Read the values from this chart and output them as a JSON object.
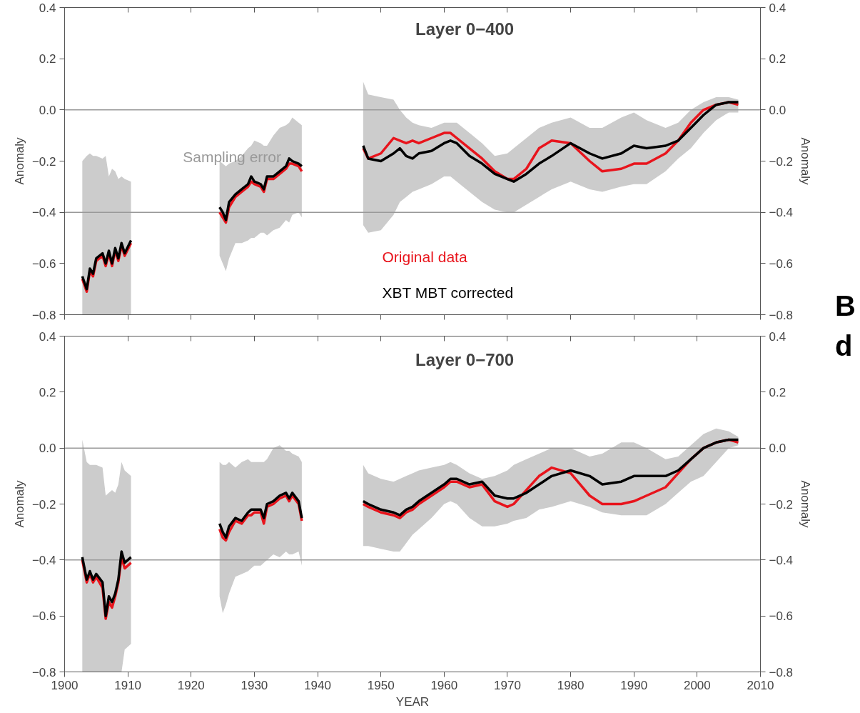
{
  "chart_data": [
    {
      "type": "line",
      "title": "Layer 0−400",
      "ylabel": "Anomaly",
      "y2label": "Anomaly",
      "x": [
        1902.8,
        1903.5,
        1904,
        1904.5,
        1905,
        1906,
        1906.5,
        1907,
        1907.5,
        1908,
        1908.5,
        1909,
        1909.5,
        1910.5,
        1917,
        1924.5,
        1925,
        1925.5,
        1926,
        1927,
        1928,
        1929,
        1929.5,
        1930,
        1931,
        1931.5,
        1932,
        1933,
        1934,
        1935,
        1935.5,
        1936,
        1937,
        1937.5,
        1942,
        1947.2,
        1948,
        1950,
        1952,
        1953,
        1954,
        1955,
        1956,
        1958,
        1960,
        1961,
        1962,
        1964,
        1966,
        1968,
        1970,
        1971,
        1973,
        1975,
        1977,
        1980,
        1983,
        1985,
        1988,
        1990,
        1992,
        1995,
        1997,
        1999,
        2001,
        2003,
        2005,
        2006.5
      ],
      "series": [
        {
          "name": "Original data",
          "color": "#e8141c",
          "values": [
            -0.66,
            -0.71,
            -0.63,
            -0.65,
            -0.59,
            -0.57,
            -0.61,
            -0.56,
            -0.61,
            -0.55,
            -0.59,
            -0.53,
            -0.57,
            -0.52,
            null,
            -0.4,
            -0.42,
            -0.44,
            -0.38,
            -0.34,
            -0.32,
            -0.3,
            -0.28,
            -0.29,
            -0.3,
            -0.32,
            -0.27,
            -0.27,
            -0.25,
            -0.23,
            -0.21,
            -0.21,
            -0.22,
            -0.24,
            null,
            -0.15,
            -0.19,
            -0.17,
            -0.11,
            -0.12,
            -0.13,
            -0.12,
            -0.13,
            -0.11,
            -0.09,
            -0.09,
            -0.11,
            -0.15,
            -0.19,
            -0.24,
            -0.27,
            -0.27,
            -0.23,
            -0.15,
            -0.12,
            -0.13,
            -0.2,
            -0.24,
            -0.23,
            -0.21,
            -0.21,
            -0.17,
            -0.12,
            -0.05,
            0.0,
            0.02,
            0.03,
            0.02
          ]
        },
        {
          "name": "XBT MBT corrected",
          "color": "#000000",
          "values": [
            -0.65,
            -0.7,
            -0.62,
            -0.64,
            -0.58,
            -0.56,
            -0.6,
            -0.55,
            -0.6,
            -0.54,
            -0.58,
            -0.52,
            -0.56,
            -0.51,
            null,
            -0.38,
            -0.4,
            -0.43,
            -0.36,
            -0.33,
            -0.31,
            -0.29,
            -0.26,
            -0.28,
            -0.29,
            -0.31,
            -0.26,
            -0.26,
            -0.24,
            -0.22,
            -0.19,
            -0.2,
            -0.21,
            -0.22,
            null,
            -0.14,
            -0.19,
            -0.2,
            -0.17,
            -0.15,
            -0.18,
            -0.19,
            -0.17,
            -0.16,
            -0.13,
            -0.12,
            -0.13,
            -0.18,
            -0.21,
            -0.25,
            -0.27,
            -0.28,
            -0.25,
            -0.21,
            -0.18,
            -0.13,
            -0.17,
            -0.19,
            -0.17,
            -0.14,
            -0.15,
            -0.14,
            -0.12,
            -0.07,
            -0.02,
            0.02,
            0.03,
            0.03
          ],
          "upper": [
            -0.2,
            -0.18,
            -0.17,
            -0.18,
            -0.18,
            -0.19,
            -0.18,
            -0.26,
            -0.23,
            -0.24,
            -0.27,
            -0.26,
            -0.27,
            -0.28,
            null,
            -0.2,
            -0.21,
            -0.22,
            -0.21,
            -0.2,
            -0.18,
            -0.15,
            -0.14,
            -0.12,
            -0.13,
            -0.14,
            -0.14,
            -0.1,
            -0.07,
            -0.06,
            -0.05,
            -0.03,
            -0.05,
            -0.06,
            null,
            0.11,
            0.06,
            0.05,
            0.04,
            0.0,
            -0.03,
            -0.05,
            -0.06,
            -0.07,
            -0.05,
            -0.05,
            -0.05,
            -0.09,
            -0.13,
            -0.18,
            -0.17,
            -0.15,
            -0.11,
            -0.07,
            -0.05,
            -0.03,
            -0.07,
            -0.07,
            -0.03,
            -0.01,
            -0.04,
            -0.07,
            -0.05,
            0.0,
            0.03,
            0.05,
            0.05,
            0.04
          ],
          "lower": [
            -0.8,
            -0.8,
            -0.8,
            -0.8,
            -0.8,
            -0.8,
            -0.8,
            -0.8,
            -0.8,
            -0.8,
            -0.8,
            -0.8,
            -0.8,
            -0.8,
            null,
            -0.57,
            -0.6,
            -0.63,
            -0.58,
            -0.52,
            -0.52,
            -0.51,
            -0.5,
            -0.5,
            -0.48,
            -0.48,
            -0.49,
            -0.47,
            -0.46,
            -0.43,
            -0.44,
            -0.41,
            -0.4,
            -0.42,
            null,
            -0.45,
            -0.48,
            -0.47,
            -0.41,
            -0.36,
            -0.34,
            -0.32,
            -0.31,
            -0.29,
            -0.26,
            -0.26,
            -0.28,
            -0.32,
            -0.36,
            -0.39,
            -0.4,
            -0.4,
            -0.37,
            -0.34,
            -0.31,
            -0.28,
            -0.31,
            -0.32,
            -0.3,
            -0.29,
            -0.29,
            -0.24,
            -0.19,
            -0.15,
            -0.09,
            -0.04,
            -0.01,
            -0.01
          ]
        }
      ],
      "xlim": [
        1900,
        2010
      ],
      "xticks": [
        1900,
        1910,
        1920,
        1930,
        1940,
        1950,
        1960,
        1970,
        1980,
        1990,
        2000,
        2010
      ],
      "ylim": [
        -0.8,
        0.4
      ],
      "yticks": [
        {
          "value": -0.8,
          "label": "−0.8"
        },
        {
          "value": -0.6,
          "label": "−0.6"
        },
        {
          "value": -0.4,
          "label": "−0.4"
        },
        {
          "value": -0.2,
          "label": "−0.2"
        },
        {
          "value": 0,
          "label": "0.0"
        },
        {
          "value": 0.2,
          "label": "0.2"
        },
        {
          "value": 0.4,
          "label": "0.4"
        }
      ],
      "y2lim": [
        -0.8,
        0.4
      ],
      "y2ticks": [
        {
          "value": -0.8,
          "label": "−0.8"
        },
        {
          "value": -0.6,
          "label": "−0.6"
        },
        {
          "value": -0.4,
          "label": "−0.4"
        },
        {
          "value": -0.2,
          "label": "−0.2"
        },
        {
          "value": 0,
          "label": "0.0"
        },
        {
          "value": 0.2,
          "label": "0.2"
        },
        {
          "value": 0.4,
          "label": "0.4"
        }
      ],
      "tick_labels": "y",
      "ref_lines": [
        {
          "axis": "y",
          "value": 0,
          "color": "#999999"
        },
        {
          "axis": "y",
          "value": -0.4,
          "color": "#999999"
        }
      ],
      "annotations": [
        "Sampling error",
        "B",
        "d"
      ],
      "legend": "bottom",
      "grid": false
    },
    {
      "type": "line",
      "title": "Layer 0−700",
      "xlabel": "YEAR",
      "ylabel": "Anomaly",
      "y2label": "Anomaly",
      "x": [
        1902.8,
        1903.5,
        1904,
        1904.5,
        1905,
        1906,
        1906.5,
        1907,
        1907.5,
        1908,
        1908.5,
        1909,
        1909.5,
        1910.5,
        1917,
        1924.5,
        1925,
        1925.5,
        1926,
        1927,
        1928,
        1929,
        1929.5,
        1930,
        1931,
        1931.5,
        1932,
        1933,
        1934,
        1935,
        1935.5,
        1936,
        1937,
        1937.5,
        1942,
        1947.2,
        1948,
        1950,
        1952,
        1953,
        1954,
        1955,
        1956,
        1958,
        1960,
        1961,
        1962,
        1964,
        1966,
        1968,
        1970,
        1971,
        1973,
        1975,
        1977,
        1980,
        1983,
        1985,
        1988,
        1990,
        1992,
        1995,
        1997,
        1999,
        2001,
        2003,
        2005,
        2006.5
      ],
      "series": [
        {
          "color": "#e8141c",
          "values": [
            -0.4,
            -0.48,
            -0.45,
            -0.48,
            -0.46,
            -0.5,
            -0.61,
            -0.55,
            -0.57,
            -0.53,
            -0.48,
            -0.39,
            -0.43,
            -0.41,
            null,
            -0.29,
            -0.32,
            -0.33,
            -0.3,
            -0.26,
            -0.27,
            -0.24,
            -0.24,
            -0.23,
            -0.23,
            -0.27,
            -0.21,
            -0.2,
            -0.18,
            -0.17,
            -0.19,
            -0.17,
            -0.2,
            -0.26,
            null,
            -0.2,
            -0.21,
            -0.23,
            -0.24,
            -0.25,
            -0.23,
            -0.22,
            -0.2,
            -0.17,
            -0.14,
            -0.12,
            -0.12,
            -0.14,
            -0.13,
            -0.19,
            -0.21,
            -0.2,
            -0.15,
            -0.1,
            -0.07,
            -0.09,
            -0.17,
            -0.2,
            -0.2,
            -0.19,
            -0.17,
            -0.14,
            -0.09,
            -0.04,
            0.0,
            0.02,
            0.03,
            0.02
          ]
        },
        {
          "color": "#000000",
          "values": [
            -0.39,
            -0.47,
            -0.44,
            -0.47,
            -0.45,
            -0.48,
            -0.6,
            -0.53,
            -0.55,
            -0.52,
            -0.47,
            -0.37,
            -0.41,
            -0.39,
            null,
            -0.27,
            -0.3,
            -0.32,
            -0.28,
            -0.25,
            -0.26,
            -0.23,
            -0.22,
            -0.22,
            -0.22,
            -0.25,
            -0.2,
            -0.19,
            -0.17,
            -0.16,
            -0.18,
            -0.16,
            -0.19,
            -0.25,
            null,
            -0.19,
            -0.2,
            -0.22,
            -0.23,
            -0.24,
            -0.22,
            -0.21,
            -0.19,
            -0.16,
            -0.13,
            -0.11,
            -0.11,
            -0.13,
            -0.12,
            -0.17,
            -0.18,
            -0.18,
            -0.16,
            -0.13,
            -0.1,
            -0.08,
            -0.1,
            -0.13,
            -0.12,
            -0.1,
            -0.1,
            -0.1,
            -0.08,
            -0.04,
            0.0,
            0.02,
            0.03,
            0.03
          ],
          "upper": [
            0.03,
            -0.05,
            -0.06,
            -0.06,
            -0.06,
            -0.07,
            -0.17,
            -0.16,
            -0.15,
            -0.16,
            -0.13,
            -0.05,
            -0.08,
            -0.1,
            null,
            -0.05,
            -0.06,
            -0.06,
            -0.05,
            -0.07,
            -0.05,
            -0.04,
            -0.05,
            -0.05,
            -0.05,
            -0.05,
            -0.04,
            0.0,
            0.01,
            -0.01,
            -0.01,
            -0.02,
            -0.03,
            -0.05,
            null,
            -0.06,
            -0.09,
            -0.11,
            -0.12,
            -0.11,
            -0.1,
            -0.09,
            -0.08,
            -0.07,
            -0.06,
            -0.05,
            -0.06,
            -0.09,
            -0.11,
            -0.1,
            -0.08,
            -0.06,
            -0.04,
            -0.02,
            0.0,
            0.0,
            -0.03,
            -0.02,
            0.02,
            0.02,
            0.0,
            -0.04,
            -0.03,
            0.01,
            0.05,
            0.07,
            0.06,
            0.04
          ],
          "lower": [
            -0.8,
            -0.8,
            -0.8,
            -0.8,
            -0.8,
            -0.8,
            -0.8,
            -0.8,
            -0.8,
            -0.8,
            -0.8,
            -0.8,
            -0.72,
            -0.7,
            null,
            -0.53,
            -0.59,
            -0.56,
            -0.52,
            -0.46,
            -0.45,
            -0.44,
            -0.43,
            -0.42,
            -0.42,
            -0.41,
            -0.4,
            -0.38,
            -0.39,
            -0.37,
            -0.38,
            -0.38,
            -0.37,
            -0.42,
            null,
            -0.35,
            -0.35,
            -0.36,
            -0.37,
            -0.37,
            -0.34,
            -0.31,
            -0.29,
            -0.25,
            -0.2,
            -0.19,
            -0.2,
            -0.25,
            -0.28,
            -0.28,
            -0.27,
            -0.26,
            -0.25,
            -0.22,
            -0.21,
            -0.19,
            -0.21,
            -0.23,
            -0.24,
            -0.24,
            -0.24,
            -0.2,
            -0.16,
            -0.12,
            -0.1,
            -0.05,
            0.0,
            0.01
          ]
        }
      ],
      "xlim": [
        1900,
        2010
      ],
      "xticks": [
        1900,
        1910,
        1920,
        1930,
        1940,
        1950,
        1960,
        1970,
        1980,
        1990,
        2000,
        2010
      ],
      "ylim": [
        -0.8,
        0.4
      ],
      "yticks": [
        {
          "value": -0.8,
          "label": "−0.8"
        },
        {
          "value": -0.6,
          "label": "−0.6"
        },
        {
          "value": -0.4,
          "label": "−0.4"
        },
        {
          "value": -0.2,
          "label": "−0.2"
        },
        {
          "value": 0,
          "label": "0.0"
        },
        {
          "value": 0.2,
          "label": "0.2"
        },
        {
          "value": 0.4,
          "label": "0.4"
        }
      ],
      "y2lim": [
        -0.8,
        0.4
      ],
      "y2ticks": [
        {
          "value": -0.8,
          "label": "−0.8"
        },
        {
          "value": -0.6,
          "label": "−0.6"
        },
        {
          "value": -0.4,
          "label": "−0.4"
        },
        {
          "value": -0.2,
          "label": "−0.2"
        },
        {
          "value": 0,
          "label": "0.0"
        },
        {
          "value": 0.2,
          "label": "0.2"
        },
        {
          "value": 0.4,
          "label": "0.4"
        }
      ],
      "ref_lines": [
        {
          "axis": "y",
          "value": 0,
          "color": "#999999"
        },
        {
          "axis": "y",
          "value": -0.4,
          "color": "#999999"
        }
      ],
      "grid": false
    }
  ]
}
